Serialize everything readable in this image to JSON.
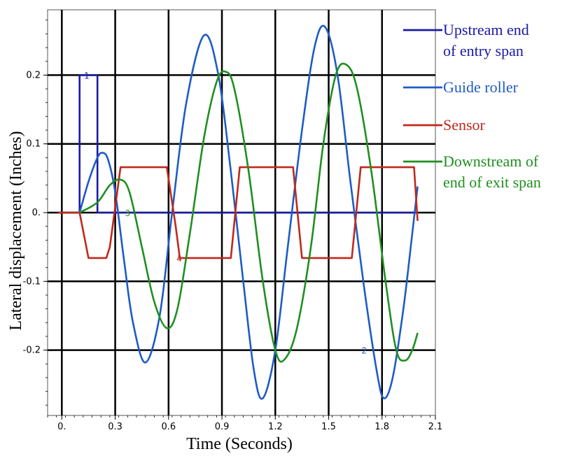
{
  "chart_data": {
    "type": "line",
    "xlabel": "Time (Seconds)",
    "ylabel": "Lateral displacement (Inches)",
    "xlim": [
      -0.08,
      2.1
    ],
    "ylim": [
      -0.295,
      0.295
    ],
    "x_ticks": [
      {
        "value": 0.0,
        "label": "0."
      },
      {
        "value": 0.3,
        "label": "0.3"
      },
      {
        "value": 0.6,
        "label": "0.6"
      },
      {
        "value": 0.9,
        "label": "0.9"
      },
      {
        "value": 1.2,
        "label": "1.2"
      },
      {
        "value": 1.5,
        "label": "1.5"
      },
      {
        "value": 1.8,
        "label": "1.8"
      },
      {
        "value": 2.1,
        "label": "2.1"
      }
    ],
    "y_ticks": [
      {
        "value": 0.2,
        "label": "0.2"
      },
      {
        "value": 0.1,
        "label": "0.1"
      },
      {
        "value": 0.0,
        "label": "0."
      },
      {
        "value": -0.1,
        "label": "-0.1"
      },
      {
        "value": -0.2,
        "label": "-0.2"
      }
    ],
    "grid": true,
    "legend_position": "right",
    "series": [
      {
        "name": "Upstream end of entry span",
        "legend_lines": [
          "Upstream end",
          "of entry span"
        ],
        "color": "#1a1aa6",
        "curve_label": "1",
        "curve_label_at": [
          0.14,
          0.2
        ],
        "x": [
          -0.02,
          0.1,
          0.1,
          0.2,
          0.2,
          2.0
        ],
        "y": [
          0,
          0,
          0.2,
          0.2,
          0,
          0
        ]
      },
      {
        "name": "Guide roller",
        "legend_lines": [
          "Guide roller"
        ],
        "color": "#1f5bc7",
        "curve_label": "2",
        "curve_label_at": [
          1.7,
          -0.2
        ],
        "x": [
          0.1,
          0.15,
          0.2,
          0.23,
          0.26,
          0.3,
          0.35,
          0.4,
          0.47,
          0.55,
          0.62,
          0.7,
          0.8,
          0.88,
          0.95,
          1.02,
          1.08,
          1.13,
          1.2,
          1.27,
          1.35,
          1.42,
          1.48,
          1.55,
          1.62,
          1.7,
          1.77,
          1.81,
          1.86,
          1.92,
          1.97,
          2.0
        ],
        "y": [
          0,
          0.045,
          0.08,
          0.087,
          0.077,
          0.03,
          -0.07,
          -0.16,
          -0.218,
          -0.15,
          0.0,
          0.16,
          0.258,
          0.2,
          0.06,
          -0.1,
          -0.23,
          -0.27,
          -0.2,
          -0.05,
          0.12,
          0.24,
          0.27,
          0.2,
          0.05,
          -0.11,
          -0.23,
          -0.27,
          -0.24,
          -0.14,
          -0.03,
          0.038
        ]
      },
      {
        "name": "Sensor",
        "legend_lines": [
          "Sensor"
        ],
        "color": "#c0281c",
        "curve_label": "4",
        "curve_label_at": [
          0.66,
          -0.066
        ],
        "x": [
          -0.02,
          0.1,
          0.15,
          0.18,
          0.25,
          0.27,
          0.33,
          0.59,
          0.64,
          0.66,
          0.66,
          0.7,
          0.95,
          1.0,
          1.3,
          1.35,
          1.63,
          1.68,
          1.98,
          2.0
        ],
        "y": [
          0,
          0,
          -0.066,
          -0.066,
          -0.066,
          -0.05,
          0.066,
          0.066,
          -0.02,
          -0.06,
          -0.066,
          -0.066,
          -0.066,
          0.066,
          0.066,
          -0.066,
          -0.066,
          0.066,
          0.066,
          -0.012
        ]
      },
      {
        "name": "Downstream of end of exit span",
        "legend_lines": [
          "Downstream of",
          "end of exit span"
        ],
        "color": "#1f8f1f",
        "curve_label": "3",
        "curve_label_at": [
          0.37,
          0.0
        ],
        "x": [
          0.1,
          0.2,
          0.27,
          0.33,
          0.38,
          0.45,
          0.52,
          0.59,
          0.65,
          0.72,
          0.8,
          0.87,
          0.92,
          0.97,
          1.05,
          1.13,
          1.2,
          1.25,
          1.32,
          1.4,
          1.47,
          1.54,
          1.6,
          1.66,
          1.74,
          1.82,
          1.88,
          1.93,
          1.97,
          2.0
        ],
        "y": [
          0,
          0.015,
          0.04,
          0.048,
          0.03,
          -0.05,
          -0.13,
          -0.168,
          -0.14,
          -0.03,
          0.11,
          0.19,
          0.205,
          0.18,
          0.06,
          -0.1,
          -0.2,
          -0.214,
          -0.17,
          -0.05,
          0.1,
          0.2,
          0.215,
          0.18,
          0.06,
          -0.1,
          -0.2,
          -0.215,
          -0.2,
          -0.175
        ]
      }
    ]
  }
}
